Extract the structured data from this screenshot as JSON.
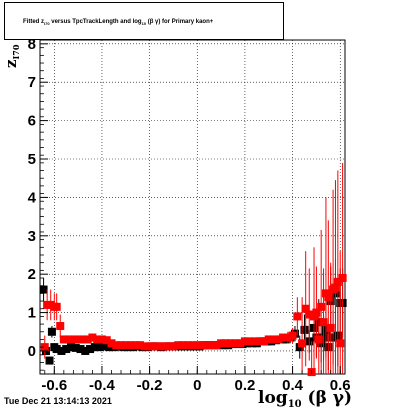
{
  "title_text": "Fitted  z_I70  versus TpcTrackLength and log_10(βγ) for Primary kaon+",
  "timestamp": "Tue Dec 21 13:14:13 2021",
  "chart_data": {
    "type": "scatter",
    "title": "Fitted  z_I70  versus TpcTrackLength and log_10(βγ) for Primary kaon+",
    "xlabel": "log10 (β γ)",
    "ylabel": "z_I70",
    "xlim": [
      -0.66,
      0.62
    ],
    "ylim": [
      -0.6,
      8.1
    ],
    "grid": true,
    "xticks": [
      "-0.6",
      "-0.4",
      "-0.2",
      "0",
      "0.2",
      "0.4",
      "0.6"
    ],
    "xtick_values": [
      -0.6,
      -0.4,
      -0.2,
      0,
      0.2,
      0.4,
      0.6
    ],
    "yticks": [
      "0",
      "1",
      "2",
      "3",
      "4",
      "5",
      "6",
      "7",
      "8"
    ],
    "ytick_values": [
      0,
      1,
      2,
      3,
      4,
      5,
      6,
      7,
      8
    ],
    "series": [
      {
        "color": "#000000",
        "marker": "square",
        "x": [
          -0.645,
          -0.635,
          -0.62,
          -0.61,
          -0.6,
          -0.59,
          -0.57,
          -0.55,
          -0.53,
          -0.51,
          -0.49,
          -0.47,
          -0.45,
          -0.43,
          -0.41,
          -0.39,
          -0.37,
          -0.35,
          -0.33,
          -0.31,
          -0.29,
          -0.27,
          -0.25,
          -0.23,
          -0.21,
          -0.19,
          -0.17,
          -0.15,
          -0.13,
          -0.11,
          -0.09,
          -0.07,
          -0.05,
          -0.03,
          -0.01,
          0.01,
          0.03,
          0.05,
          0.07,
          0.09,
          0.11,
          0.13,
          0.15,
          0.17,
          0.19,
          0.21,
          0.23,
          0.25,
          0.27,
          0.29,
          0.31,
          0.33,
          0.35,
          0.37,
          0.39,
          0.41,
          0.43,
          0.45,
          0.47,
          0.49,
          0.5,
          0.51,
          0.52,
          0.53,
          0.54,
          0.55,
          0.56,
          0.57,
          0.58,
          0.59,
          0.6,
          0.61
        ],
        "y": [
          1.6,
          0.0,
          -0.25,
          0.5,
          0.1,
          0.05,
          0.0,
          0.05,
          0.1,
          0.08,
          0.05,
          0.0,
          0.05,
          0.1,
          0.1,
          0.12,
          0.1,
          0.1,
          0.12,
          0.1,
          0.1,
          0.1,
          0.12,
          0.1,
          0.1,
          0.12,
          0.12,
          0.1,
          0.12,
          0.12,
          0.12,
          0.12,
          0.12,
          0.12,
          0.12,
          0.12,
          0.15,
          0.15,
          0.15,
          0.15,
          0.15,
          0.15,
          0.18,
          0.18,
          0.18,
          0.2,
          0.2,
          0.2,
          0.25,
          0.25,
          0.25,
          0.28,
          0.3,
          0.3,
          0.35,
          0.45,
          0.1,
          0.55,
          0.25,
          0.6,
          0.35,
          0.75,
          0.2,
          0.35,
          0.55,
          0.1,
          1.3,
          0.35,
          1.5,
          0.4,
          1.25,
          1.25
        ],
        "yerr": [
          0.3,
          0.1,
          0.1,
          0.15,
          0.05,
          0.05,
          0.05,
          0.05,
          0.05,
          0.05,
          0.05,
          0.05,
          0.05,
          0.05,
          0.05,
          0.05,
          0.05,
          0.05,
          0.05,
          0.05,
          0.05,
          0.05,
          0.05,
          0.05,
          0.05,
          0.05,
          0.05,
          0.05,
          0.05,
          0.05,
          0.05,
          0.05,
          0.05,
          0.05,
          0.05,
          0.05,
          0.05,
          0.05,
          0.05,
          0.05,
          0.05,
          0.05,
          0.05,
          0.05,
          0.05,
          0.05,
          0.05,
          0.05,
          0.05,
          0.05,
          0.1,
          0.1,
          0.1,
          0.1,
          0.15,
          0.2,
          0.3,
          0.4,
          0.3,
          0.5,
          0.5,
          0.6,
          0.5,
          0.6,
          0.7,
          0.6,
          0.9,
          0.7,
          0.9,
          0.8,
          0.9,
          0.9
        ]
      },
      {
        "color": "#ff0000",
        "marker": "square",
        "x": [
          -0.64,
          -0.63,
          -0.615,
          -0.6,
          -0.59,
          -0.575,
          -0.56,
          -0.54,
          -0.52,
          -0.5,
          -0.48,
          -0.46,
          -0.44,
          -0.42,
          -0.4,
          -0.38,
          -0.36,
          -0.34,
          -0.32,
          -0.3,
          -0.28,
          -0.26,
          -0.24,
          -0.22,
          -0.2,
          -0.18,
          -0.16,
          -0.14,
          -0.12,
          -0.1,
          -0.08,
          -0.06,
          -0.04,
          -0.02,
          0.0,
          0.02,
          0.04,
          0.06,
          0.08,
          0.1,
          0.12,
          0.14,
          0.16,
          0.18,
          0.2,
          0.22,
          0.24,
          0.26,
          0.28,
          0.3,
          0.32,
          0.34,
          0.36,
          0.38,
          0.4,
          0.42,
          0.44,
          0.455,
          0.47,
          0.48,
          0.49,
          0.5,
          0.51,
          0.52,
          0.53,
          0.54,
          0.55,
          0.56,
          0.57,
          0.58,
          0.59,
          0.6,
          0.61
        ],
        "y": [
          0.1,
          1.2,
          1.2,
          1.15,
          1.15,
          0.65,
          0.3,
          0.3,
          0.3,
          0.3,
          0.3,
          0.3,
          0.35,
          0.3,
          0.3,
          0.28,
          0.2,
          0.15,
          0.15,
          0.15,
          0.15,
          0.15,
          0.15,
          0.12,
          0.12,
          0.12,
          0.12,
          0.12,
          0.12,
          0.12,
          0.15,
          0.15,
          0.15,
          0.15,
          0.15,
          0.15,
          0.15,
          0.15,
          0.15,
          0.2,
          0.2,
          0.2,
          0.2,
          0.2,
          0.25,
          0.25,
          0.25,
          0.25,
          0.25,
          0.3,
          0.3,
          0.3,
          0.35,
          0.35,
          0.4,
          0.9,
          0.2,
          1.1,
          0.95,
          -0.55,
          0.9,
          1.0,
          0.3,
          1.15,
          0.75,
          1.5,
          1.4,
          0.6,
          1.6,
          1.65,
          1.8,
          0.2,
          1.9
        ],
        "yerr": [
          0.3,
          0.4,
          0.4,
          0.35,
          0.35,
          0.3,
          0.1,
          0.1,
          0.1,
          0.1,
          0.1,
          0.1,
          0.1,
          0.1,
          0.1,
          0.08,
          0.05,
          0.05,
          0.05,
          0.05,
          0.05,
          0.05,
          0.05,
          0.05,
          0.05,
          0.05,
          0.05,
          0.05,
          0.05,
          0.05,
          0.05,
          0.05,
          0.05,
          0.05,
          0.05,
          0.05,
          0.05,
          0.05,
          0.05,
          0.05,
          0.05,
          0.05,
          0.05,
          0.05,
          0.05,
          0.05,
          0.05,
          0.05,
          0.05,
          0.1,
          0.1,
          0.1,
          0.1,
          0.15,
          0.2,
          0.5,
          1.2,
          1.5,
          1.2,
          0.8,
          1.8,
          1.2,
          0.9,
          2.0,
          1.4,
          2.5,
          2.0,
          1.7,
          2.6,
          2.8,
          2.9,
          2.4,
          3.0
        ]
      }
    ]
  }
}
